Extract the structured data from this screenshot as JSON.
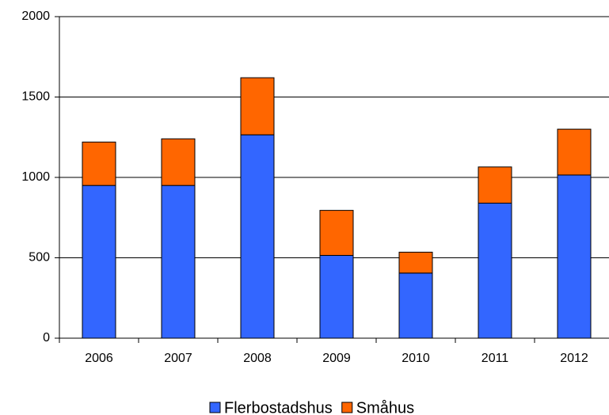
{
  "chart_data": {
    "type": "stacked-bar",
    "categories": [
      "2006",
      "2007",
      "2008",
      "2009",
      "2010",
      "2011",
      "2012"
    ],
    "series": [
      {
        "name": "Flerbostadshus",
        "color": "#3366ff",
        "values": [
          950,
          950,
          1265,
          515,
          405,
          840,
          1015
        ]
      },
      {
        "name": "Småhus",
        "color": "#ff6600",
        "values": [
          270,
          290,
          355,
          280,
          130,
          225,
          285
        ]
      }
    ],
    "ylim": [
      0,
      2000
    ],
    "yticks": [
      0,
      500,
      1000,
      1500,
      2000
    ],
    "grid": true,
    "legend": "bottom"
  }
}
